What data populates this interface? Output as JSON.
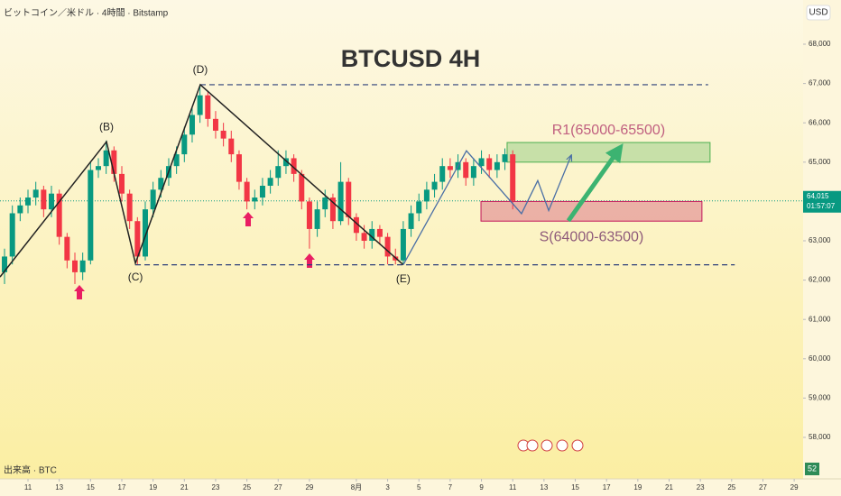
{
  "chart_data": {
    "type": "candlestick",
    "header": "ビットコイン／米ドル · 4時間 · Bitstamp",
    "title": "BTCUSD 4H",
    "currency": "USD",
    "up_color": "#089981",
    "down_color": "#f23645",
    "x": [
      -1.5,
      -1,
      -0.5,
      0,
      0.5,
      1,
      1.5,
      2,
      2.5,
      3,
      3.5,
      4,
      4.5,
      5,
      5.5,
      6,
      6.5,
      7,
      7.5,
      8,
      8.5,
      9,
      9.5,
      10,
      10.5,
      11,
      11.5,
      12,
      12.5,
      13,
      13.5,
      14,
      14.5,
      15,
      15.5,
      16,
      16.5,
      17,
      17.5,
      18,
      18.5,
      19,
      19.5,
      20,
      20.5,
      21,
      21.5,
      22,
      22.5,
      23,
      23.5,
      24,
      24.5,
      25,
      25.5,
      26,
      26.5,
      27,
      27.5,
      28,
      28.5,
      29,
      29.5,
      30,
      30.5,
      31
    ],
    "open": [
      62200,
      62600,
      63700,
      63900,
      64100,
      64300,
      63800,
      64200,
      63100,
      62500,
      62200,
      62500,
      64800,
      64900,
      65300,
      64700,
      64200,
      63500,
      62600,
      63800,
      64300,
      64600,
      64900,
      65200,
      65700,
      66200,
      66700,
      66100,
      65800,
      65600,
      65200,
      64500,
      64000,
      64100,
      64400,
      64600,
      64900,
      65100,
      64700,
      64000,
      63300,
      63800,
      64100,
      63500,
      64500,
      63600,
      63200,
      63000,
      63300,
      63100,
      62600,
      62500,
      63300,
      63700,
      64000,
      64300,
      64500,
      64900,
      64800,
      65000,
      64600,
      64900,
      65100,
      64800,
      65000,
      65200
    ],
    "high": [
      62800,
      63900,
      64100,
      64300,
      64500,
      64400,
      64400,
      64300,
      63200,
      62700,
      62700,
      65000,
      65100,
      65550,
      65400,
      64900,
      64300,
      63600,
      64000,
      64500,
      64800,
      65100,
      65400,
      65900,
      66400,
      66950,
      66800,
      66300,
      66000,
      65800,
      65300,
      64600,
      64300,
      64600,
      64800,
      65300,
      65300,
      65200,
      64800,
      64100,
      64000,
      64300,
      64200,
      65000,
      64600,
      63700,
      63400,
      63500,
      63400,
      63200,
      62800,
      63500,
      63900,
      64200,
      64500,
      64700,
      65100,
      65100,
      65200,
      65100,
      65100,
      65300,
      65200,
      65200,
      65350,
      65300
    ],
    "low": [
      61900,
      62400,
      63500,
      63700,
      63900,
      63600,
      63600,
      62900,
      62300,
      61900,
      62000,
      62400,
      64600,
      64700,
      64500,
      64000,
      63300,
      62400,
      62500,
      63600,
      64100,
      64400,
      64700,
      65000,
      65500,
      66000,
      65900,
      65600,
      65400,
      65000,
      64300,
      63800,
      63800,
      63900,
      64200,
      64400,
      64700,
      64500,
      63800,
      62800,
      63100,
      63600,
      63300,
      63400,
      63400,
      63000,
      62800,
      62800,
      62900,
      62400,
      62400,
      62400,
      63100,
      63500,
      63800,
      64100,
      64300,
      64600,
      64600,
      64400,
      64400,
      64700,
      64600,
      64600,
      64800,
      63800
    ],
    "close": [
      62600,
      63700,
      63900,
      64100,
      64300,
      63800,
      64200,
      63100,
      62500,
      62200,
      62500,
      64800,
      64900,
      65300,
      64700,
      64200,
      63500,
      62600,
      63800,
      64300,
      64600,
      64900,
      65200,
      65700,
      66200,
      66700,
      66100,
      65800,
      65600,
      65200,
      64500,
      64000,
      64100,
      64400,
      64600,
      64900,
      65100,
      64700,
      64000,
      63300,
      63800,
      64100,
      63500,
      64500,
      63600,
      63200,
      63000,
      63300,
      63100,
      62600,
      62500,
      63300,
      63700,
      64000,
      64300,
      64500,
      64900,
      64800,
      65000,
      64600,
      64900,
      65100,
      64800,
      65000,
      65200,
      64015
    ],
    "xlim": [
      -1.79,
      49.57
    ],
    "ylim": [
      56968,
      69124
    ],
    "xticks": [
      {
        "value": 0,
        "label": "11"
      },
      {
        "value": 2,
        "label": "13"
      },
      {
        "value": 4,
        "label": "15"
      },
      {
        "value": 6,
        "label": "17"
      },
      {
        "value": 8,
        "label": "19"
      },
      {
        "value": 10,
        "label": "21"
      },
      {
        "value": 12,
        "label": "23"
      },
      {
        "value": 14,
        "label": "25"
      },
      {
        "value": 16,
        "label": "27"
      },
      {
        "value": 18,
        "label": "29"
      },
      {
        "value": 21,
        "label": "8月"
      },
      {
        "value": 23,
        "label": "3"
      },
      {
        "value": 25,
        "label": "5"
      },
      {
        "value": 27,
        "label": "7"
      },
      {
        "value": 29,
        "label": "9"
      },
      {
        "value": 31,
        "label": "11"
      },
      {
        "value": 33,
        "label": "13"
      },
      {
        "value": 35,
        "label": "15"
      },
      {
        "value": 37,
        "label": "17"
      },
      {
        "value": 39,
        "label": "19"
      },
      {
        "value": 41,
        "label": "21"
      },
      {
        "value": 43,
        "label": "23"
      },
      {
        "value": 45,
        "label": "25"
      },
      {
        "value": 47,
        "label": "27"
      },
      {
        "value": 49,
        "label": "29"
      }
    ],
    "yticks": [
      {
        "value": 58000,
        "label": "58,000"
      },
      {
        "value": 59000,
        "label": "59,000"
      },
      {
        "value": 60000,
        "label": "60,000"
      },
      {
        "value": 61000,
        "label": "61,000"
      },
      {
        "value": 62000,
        "label": "62,000"
      },
      {
        "value": 63000,
        "label": "63,000"
      },
      {
        "value": 64000,
        "label": "64,000"
      },
      {
        "value": 65000,
        "label": "65,000"
      },
      {
        "value": 66000,
        "label": "66,000"
      },
      {
        "value": 67000,
        "label": "67,000"
      },
      {
        "value": 68000,
        "label": "68,000"
      }
    ],
    "last_price": {
      "value": 64015,
      "label": "64,015"
    },
    "countdown": "01:57:07",
    "volume_label": "出来高 · BTC",
    "volume_value": 52,
    "levels": [
      {
        "y": 66970,
        "x": [
          11.02,
          43.5
        ]
      },
      {
        "y": 62390,
        "x": [
          6.87,
          45.2
        ]
      }
    ],
    "zones": [
      {
        "label": "R1(65000-65500)",
        "x": [
          30.64,
          43.62
        ],
        "y": [
          65000,
          65500
        ],
        "color": "#4caf50"
      },
      {
        "label": "S(64000-63500)",
        "x": [
          28.97,
          43.1
        ],
        "y": [
          63500,
          64000
        ],
        "color": "#c2185b"
      }
    ],
    "pattern": {
      "x": [
        -1.79,
        5.02,
        6.87,
        11.02,
        24.0
      ],
      "y": [
        62080,
        65520,
        62430,
        66970,
        62390
      ],
      "labels": [
        null,
        "(B)",
        "(C)",
        "(D)",
        "(E)"
      ]
    },
    "projection": {
      "x": [
        24.0,
        28.04,
        31.56,
        32.6,
        33.3,
        34.74
      ],
      "y": [
        62390,
        65290,
        63690,
        64530,
        63770,
        65170
      ]
    },
    "arrow": {
      "x": [
        34.56,
        37.73
      ],
      "y": [
        63510,
        65290
      ]
    }
  }
}
